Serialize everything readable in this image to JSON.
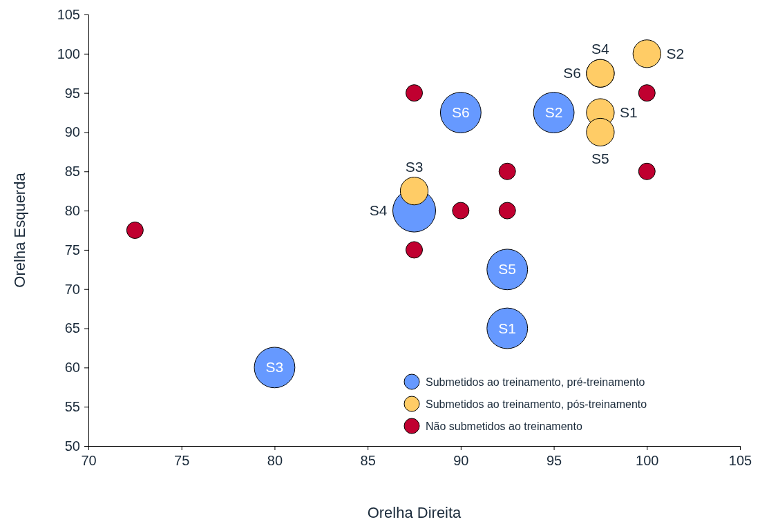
{
  "chart_data": {
    "type": "bubble",
    "xlabel": "Orelha Direita",
    "ylabel": "Orelha Esquerda",
    "xlim": [
      70,
      105
    ],
    "ylim": [
      50,
      105
    ],
    "xticks": [
      70,
      75,
      80,
      85,
      90,
      95,
      100,
      105
    ],
    "yticks": [
      50,
      55,
      60,
      65,
      70,
      75,
      80,
      85,
      90,
      95,
      100,
      105
    ],
    "grid": false,
    "legend": "bottom right",
    "marker": "circle",
    "series": [
      {
        "name": "Submetidos ao treinamento, pré-treinamento",
        "color": "#6699ff",
        "x": [
          92.5,
          95,
          80,
          87.5,
          92.5,
          90
        ],
        "values": [
          65,
          92.5,
          60,
          80,
          72.5,
          92.5
        ],
        "sizes": [
          0.9,
          0.9,
          0.9,
          1,
          0.9,
          0.9
        ],
        "value_labels": [
          "S1",
          "S2",
          "S3",
          "S4",
          "S5",
          "S6"
        ]
      },
      {
        "name": "Submetidos ao treinamento, pós-treinamento",
        "color": "#ffcc66",
        "x": [
          97.5,
          100,
          87.5,
          97.5,
          97.5,
          97.5
        ],
        "values": [
          92.5,
          100,
          82.5,
          97.5,
          90,
          97.5
        ],
        "sizes": [
          0.42,
          0.42,
          0.42,
          0.42,
          0.42,
          0.42
        ],
        "value_labels": [
          "S1",
          "S2",
          "S3",
          "S4",
          "S5",
          "S6"
        ]
      },
      {
        "name": "Não submetidos ao treinamento",
        "color": "#c00030",
        "x": [
          72.5,
          87.5,
          87.5,
          90,
          92.5,
          92.5,
          100,
          100
        ],
        "values": [
          77.5,
          95,
          75,
          80,
          85,
          80,
          95,
          85
        ],
        "sizes": [
          0.15,
          0.15,
          0.15,
          0.15,
          0.15,
          0.15,
          0.15,
          0.15
        ]
      }
    ]
  }
}
